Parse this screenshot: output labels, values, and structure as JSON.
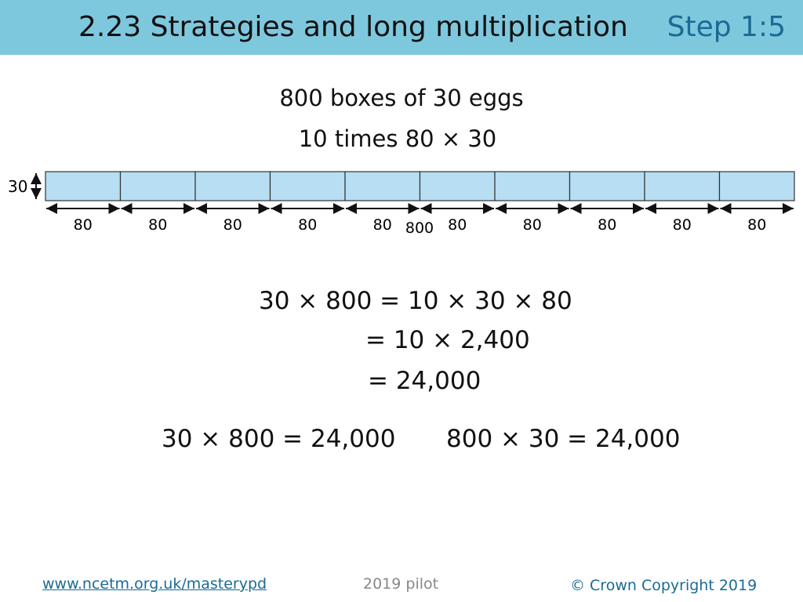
{
  "header": {
    "title": "2.23 Strategies and long multiplication",
    "step": "Step 1:5"
  },
  "heading": {
    "line1": "800 boxes of 30 eggs",
    "line2": "10 times 80 × 30"
  },
  "bar_model": {
    "height_label": "30",
    "segment_labels": [
      "80",
      "80",
      "80",
      "80",
      "80",
      "80",
      "80",
      "80",
      "80",
      "80"
    ],
    "total_label": "800"
  },
  "working": {
    "line1": "30 × 800 = 10 × 30 × 80",
    "line2": "= 10 × 2,400",
    "line3": "= 24,000"
  },
  "results": {
    "left": "30 × 800 = 24,000",
    "right": "800 × 30 = 24,000"
  },
  "footer": {
    "link": "www.ncetm.org.uk/masterypd",
    "pilot": "2019 pilot",
    "copyright": "© Crown Copyright 2019"
  }
}
